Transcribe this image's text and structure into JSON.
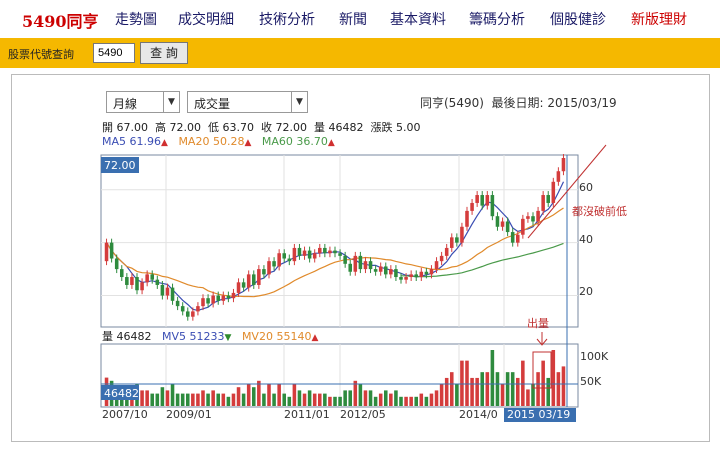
{
  "nav": {
    "brand": "5490同亨",
    "items": [
      {
        "label": "走勢圖",
        "red": false
      },
      {
        "label": "成交明細",
        "red": false
      },
      {
        "label": "技術分析",
        "red": false
      },
      {
        "label": "新聞",
        "red": false
      },
      {
        "label": "基本資料",
        "red": false
      },
      {
        "label": "籌碼分析",
        "red": false
      },
      {
        "label": "個股健診",
        "red": false
      },
      {
        "label": "新版理財",
        "red": true
      }
    ]
  },
  "search": {
    "label": "股票代號查詢",
    "value": "5490",
    "button": "查 詢"
  },
  "controls": {
    "period": "月線",
    "indicator": "成交量"
  },
  "info": {
    "stock": "同亨(5490)",
    "last_date_label": "最後日期:",
    "last_date": "2015/03/19"
  },
  "ohlc": {
    "open_label": "開",
    "open": "67.00",
    "high_label": "高",
    "high": "72.00",
    "low_label": "低",
    "low": "63.70",
    "close_label": "收",
    "close": "72.00",
    "volume_label": "量",
    "volume": "46482",
    "change_label": "漲跌",
    "change": "5.00"
  },
  "ma": {
    "ma5": "MA5 61.96",
    "ma20": "MA20 50.28",
    "ma60": "MA60 36.70",
    "ma5_color": "#3a4db3",
    "ma20_color": "#e08a2b",
    "ma60_color": "#4a9a4a"
  },
  "vol_legend": {
    "vol": "量 46482",
    "mv5": "MV5 51233",
    "mv20": "MV20 55140"
  },
  "chart_data": [
    {
      "type": "candlestick",
      "price_axis_ticks": [
        "20",
        "40",
        "60"
      ],
      "current_price_label": "72.00",
      "y_range": [
        10,
        72
      ],
      "annotation": "都沒破前低",
      "candles": [
        {
          "o": 33,
          "c": 40
        },
        {
          "o": 40,
          "c": 34
        },
        {
          "o": 34,
          "c": 30
        },
        {
          "o": 30,
          "c": 27
        },
        {
          "o": 27,
          "c": 24
        },
        {
          "o": 24,
          "c": 27
        },
        {
          "o": 27,
          "c": 22
        },
        {
          "o": 22,
          "c": 25
        },
        {
          "o": 25,
          "c": 28
        },
        {
          "o": 28,
          "c": 26
        },
        {
          "o": 26,
          "c": 24
        },
        {
          "o": 24,
          "c": 20
        },
        {
          "o": 20,
          "c": 23
        },
        {
          "o": 23,
          "c": 18
        },
        {
          "o": 18,
          "c": 16
        },
        {
          "o": 16,
          "c": 14
        },
        {
          "o": 14,
          "c": 12
        },
        {
          "o": 12,
          "c": 14
        },
        {
          "o": 14,
          "c": 16
        },
        {
          "o": 16,
          "c": 19
        },
        {
          "o": 19,
          "c": 17
        },
        {
          "o": 17,
          "c": 20
        },
        {
          "o": 20,
          "c": 18
        },
        {
          "o": 18,
          "c": 20
        },
        {
          "o": 20,
          "c": 19
        },
        {
          "o": 19,
          "c": 21
        },
        {
          "o": 21,
          "c": 25
        },
        {
          "o": 25,
          "c": 23
        },
        {
          "o": 23,
          "c": 28
        },
        {
          "o": 28,
          "c": 24
        },
        {
          "o": 24,
          "c": 30
        },
        {
          "o": 30,
          "c": 28
        },
        {
          "o": 28,
          "c": 33
        },
        {
          "o": 33,
          "c": 31
        },
        {
          "o": 31,
          "c": 36
        },
        {
          "o": 36,
          "c": 34
        },
        {
          "o": 34,
          "c": 33
        },
        {
          "o": 33,
          "c": 38
        },
        {
          "o": 38,
          "c": 35
        },
        {
          "o": 35,
          "c": 37
        },
        {
          "o": 37,
          "c": 34
        },
        {
          "o": 34,
          "c": 36
        },
        {
          "o": 36,
          "c": 38
        },
        {
          "o": 38,
          "c": 36
        },
        {
          "o": 36,
          "c": 37
        },
        {
          "o": 37,
          "c": 36
        },
        {
          "o": 36,
          "c": 35
        },
        {
          "o": 35,
          "c": 32
        },
        {
          "o": 32,
          "c": 29
        },
        {
          "o": 29,
          "c": 35
        },
        {
          "o": 35,
          "c": 30
        },
        {
          "o": 30,
          "c": 33
        },
        {
          "o": 33,
          "c": 30
        },
        {
          "o": 30,
          "c": 29
        },
        {
          "o": 29,
          "c": 31
        },
        {
          "o": 31,
          "c": 28
        },
        {
          "o": 28,
          "c": 30
        },
        {
          "o": 30,
          "c": 27
        },
        {
          "o": 27,
          "c": 26
        },
        {
          "o": 26,
          "c": 27
        },
        {
          "o": 27,
          "c": 28
        },
        {
          "o": 28,
          "c": 27
        },
        {
          "o": 27,
          "c": 29
        },
        {
          "o": 29,
          "c": 28
        },
        {
          "o": 28,
          "c": 30
        },
        {
          "o": 30,
          "c": 33
        },
        {
          "o": 33,
          "c": 35
        },
        {
          "o": 35,
          "c": 38
        },
        {
          "o": 38,
          "c": 42
        },
        {
          "o": 42,
          "c": 40
        },
        {
          "o": 40,
          "c": 46
        },
        {
          "o": 46,
          "c": 52
        },
        {
          "o": 52,
          "c": 55
        },
        {
          "o": 55,
          "c": 58
        },
        {
          "o": 58,
          "c": 54
        },
        {
          "o": 54,
          "c": 58
        },
        {
          "o": 58,
          "c": 50
        },
        {
          "o": 50,
          "c": 46
        },
        {
          "o": 46,
          "c": 48
        },
        {
          "o": 48,
          "c": 44
        },
        {
          "o": 44,
          "c": 40
        },
        {
          "o": 40,
          "c": 43
        },
        {
          "o": 43,
          "c": 49
        },
        {
          "o": 49,
          "c": 50
        },
        {
          "o": 50,
          "c": 48
        },
        {
          "o": 48,
          "c": 52
        },
        {
          "o": 52,
          "c": 58
        },
        {
          "o": 58,
          "c": 55
        },
        {
          "o": 55,
          "c": 63
        },
        {
          "o": 63,
          "c": 67
        },
        {
          "o": 67,
          "c": 72
        }
      ]
    },
    {
      "type": "bar",
      "volume_axis_ticks": [
        "50K",
        "100K"
      ],
      "current_volume_label": "46482",
      "annotation": "出量",
      "x_labels": [
        "2007/10",
        "2009/01",
        "2011/01",
        "2012/05",
        "2014/0",
        "2015 03/19"
      ]
    }
  ]
}
